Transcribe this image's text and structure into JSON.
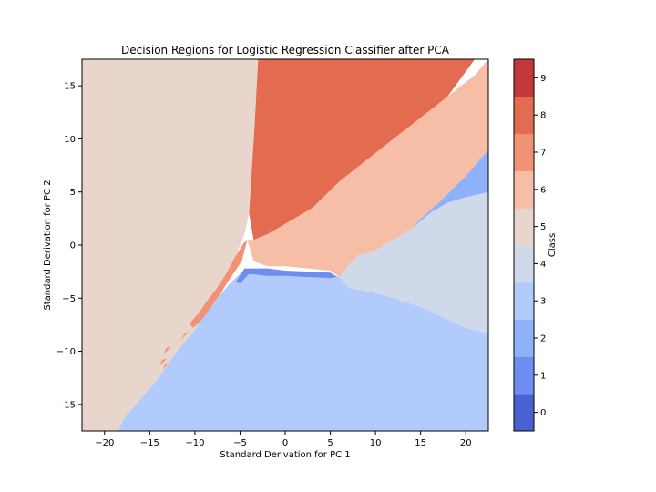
{
  "chart_data": {
    "type": "contour",
    "title": "Decision Regions for Logistic Regression Classifier after PCA",
    "xlabel": "Standard Derivation for PC 1",
    "ylabel": "Standard Derivation for PC 2",
    "xlim": [
      -22.5,
      22.5
    ],
    "ylim": [
      -17.5,
      17.5
    ],
    "xticks": [
      -20,
      -15,
      -10,
      -5,
      0,
      5,
      10,
      15,
      20
    ],
    "yticks": [
      -15,
      -10,
      -5,
      0,
      5,
      10,
      15
    ],
    "grid": false,
    "colorbar": {
      "label": "Class",
      "levels": [
        0,
        1,
        2,
        3,
        4,
        5,
        6,
        7,
        8,
        9
      ],
      "tick_labels": [
        "0",
        "1",
        "2",
        "3",
        "4",
        "5",
        "6",
        "7",
        "8",
        "9"
      ],
      "colors": [
        "#4a61d1",
        "#6b8ef0",
        "#8eb1fb",
        "#b0cbfc",
        "#cfd9e9",
        "#e8d6cd",
        "#f6bea6",
        "#f29274",
        "#e36b4f",
        "#c5383a"
      ]
    },
    "regions": [
      {
        "class": 5,
        "polygon": [
          [
            -22.5,
            17.5
          ],
          [
            -3,
            17.5
          ],
          [
            -3.4,
            11
          ],
          [
            -4,
            3
          ],
          [
            -4.5,
            1
          ],
          [
            -5,
            0
          ],
          [
            -6,
            -2.5
          ],
          [
            -7,
            -4.5
          ],
          [
            -8.5,
            -6
          ],
          [
            -10,
            -8
          ],
          [
            -12,
            -10
          ],
          [
            -14,
            -12.5
          ],
          [
            -16,
            -14.5
          ],
          [
            -18,
            -16.5
          ],
          [
            -18.5,
            -17.5
          ],
          [
            -22.5,
            -17.5
          ]
        ]
      },
      {
        "class": 3,
        "polygon": [
          [
            -18.5,
            -17.5
          ],
          [
            -18,
            -16.5
          ],
          [
            -16,
            -14.5
          ],
          [
            -14,
            -12.5
          ],
          [
            -12,
            -10
          ],
          [
            -10,
            -8
          ],
          [
            -8.5,
            -6
          ],
          [
            -7,
            -4.5
          ],
          [
            -6,
            -3.5
          ],
          [
            -4.5,
            -2.3
          ],
          [
            -3,
            -2.3
          ],
          [
            -2,
            -2.6
          ],
          [
            0,
            -2.6
          ],
          [
            2.5,
            -2.8
          ],
          [
            5,
            -2.8
          ],
          [
            6,
            -3
          ],
          [
            7,
            -4
          ],
          [
            10,
            -4.5
          ],
          [
            12,
            -5
          ],
          [
            15,
            -5.8
          ],
          [
            18,
            -7
          ],
          [
            20,
            -7.8
          ],
          [
            22.5,
            -8.3
          ],
          [
            22.5,
            -17.5
          ]
        ]
      },
      {
        "class": 4,
        "polygon": [
          [
            6,
            -3
          ],
          [
            7,
            -2
          ],
          [
            8,
            -1
          ],
          [
            10,
            -0.5
          ],
          [
            12,
            0.5
          ],
          [
            14,
            1.5
          ],
          [
            16,
            3
          ],
          [
            18,
            4
          ],
          [
            20,
            4.5
          ],
          [
            22.5,
            5
          ],
          [
            22.5,
            -8.3
          ],
          [
            20,
            -7.8
          ],
          [
            18,
            -7
          ],
          [
            15,
            -5.8
          ],
          [
            12,
            -5
          ],
          [
            10,
            -4.5
          ],
          [
            7,
            -4
          ]
        ]
      },
      {
        "class": 2,
        "polygon": [
          [
            14,
            1.5
          ],
          [
            16,
            3
          ],
          [
            18,
            4
          ],
          [
            20,
            4.5
          ],
          [
            22.5,
            5
          ],
          [
            22.5,
            9
          ],
          [
            20,
            6.5
          ],
          [
            17,
            4
          ],
          [
            15,
            2.5
          ]
        ]
      },
      {
        "class": 6,
        "polygon": [
          [
            -4.2,
            0.5
          ],
          [
            -3.5,
            -1.5
          ],
          [
            -2,
            -2
          ],
          [
            0,
            -2
          ],
          [
            2.5,
            -2.2
          ],
          [
            5,
            -2.4
          ],
          [
            6,
            -3
          ],
          [
            7,
            -2
          ],
          [
            8,
            -1
          ],
          [
            10,
            -0.5
          ],
          [
            12,
            0.5
          ],
          [
            14,
            1.5
          ],
          [
            15,
            2.5
          ],
          [
            17,
            4
          ],
          [
            20,
            6.5
          ],
          [
            22.5,
            9
          ],
          [
            22.5,
            17.5
          ],
          [
            21,
            16
          ],
          [
            18,
            14
          ],
          [
            15,
            12
          ],
          [
            12,
            10
          ],
          [
            9,
            8
          ],
          [
            6,
            6
          ],
          [
            3,
            3.5
          ],
          [
            0,
            2
          ],
          [
            -2,
            1
          ],
          [
            -3.5,
            0.5
          ]
        ]
      },
      {
        "class": 8,
        "polygon": [
          [
            -3,
            17.5
          ],
          [
            21,
            17.5
          ],
          [
            18,
            14
          ],
          [
            15,
            12
          ],
          [
            12,
            10
          ],
          [
            9,
            8
          ],
          [
            6,
            6
          ],
          [
            3,
            3.5
          ],
          [
            0,
            2
          ],
          [
            -2,
            1
          ],
          [
            -3.5,
            0.5
          ],
          [
            -4,
            3
          ],
          [
            -3.4,
            11
          ]
        ]
      },
      {
        "class": 1,
        "polygon": [
          [
            -5.5,
            -3.5
          ],
          [
            -4.5,
            -2.2
          ],
          [
            -2,
            -2.2
          ],
          [
            0,
            -2.4
          ],
          [
            2.5,
            -2.5
          ],
          [
            5,
            -2.6
          ],
          [
            5.8,
            -3
          ],
          [
            5,
            -3.1
          ],
          [
            2.5,
            -3
          ],
          [
            0,
            -2.9
          ],
          [
            -2,
            -2.9
          ],
          [
            -4,
            -2.7
          ],
          [
            -5,
            -3.6
          ]
        ]
      },
      {
        "class": 7,
        "polygon": [
          [
            -4.6,
            0.2
          ],
          [
            -4.2,
            0.5
          ],
          [
            -4.8,
            -1.5
          ],
          [
            -6.3,
            -3.4
          ],
          [
            -7.2,
            -4.6
          ],
          [
            -8.2,
            -5.8
          ],
          [
            -9.2,
            -7
          ],
          [
            -10.2,
            -7.8
          ],
          [
            -10.6,
            -7.4
          ],
          [
            -9.6,
            -6.4
          ],
          [
            -8.6,
            -5.2
          ],
          [
            -7.6,
            -4.1
          ],
          [
            -6.6,
            -2.8
          ],
          [
            -5.6,
            -1.2
          ]
        ]
      },
      {
        "class": 7,
        "polygon": [
          [
            -10.4,
            -8
          ],
          [
            -11.2,
            -8.6
          ],
          [
            -11.6,
            -9
          ],
          [
            -11.2,
            -8.4
          ]
        ]
      },
      {
        "class": 7,
        "polygon": [
          [
            -12.6,
            -9.6
          ],
          [
            -13.4,
            -10.2
          ],
          [
            -13.2,
            -9.7
          ]
        ]
      },
      {
        "class": 7,
        "polygon": [
          [
            -13.1,
            -10.7
          ],
          [
            -13.9,
            -11.3
          ],
          [
            -13.6,
            -10.8
          ]
        ]
      },
      {
        "class": 7,
        "polygon": [
          [
            -12.9,
            -11.1
          ],
          [
            -13.5,
            -11.7
          ],
          [
            -13.3,
            -11.2
          ]
        ]
      }
    ]
  }
}
